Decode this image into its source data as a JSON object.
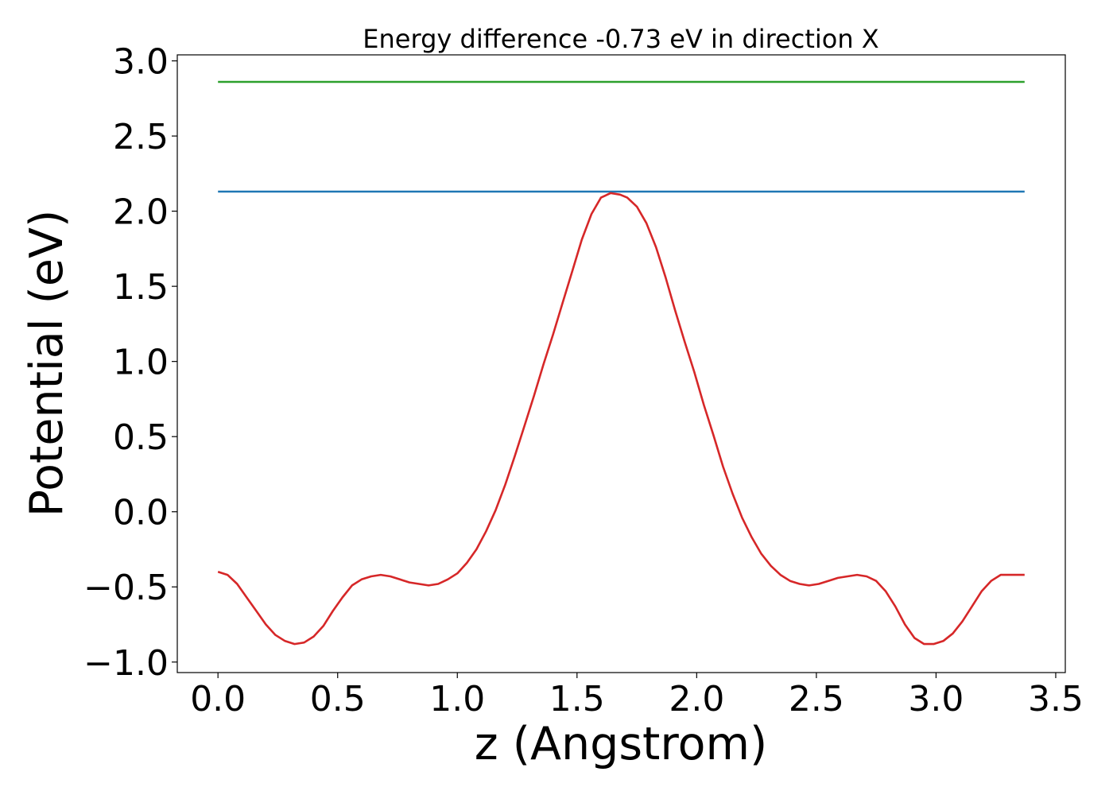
{
  "chart_data": {
    "type": "line",
    "title": "Energy difference -0.73 eV in direction X",
    "xlabel": "z (Angstrom)",
    "ylabel": "Potential (eV)",
    "xlim": [
      -0.17,
      3.54
    ],
    "ylim": [
      -1.07,
      3.04
    ],
    "xticks": [
      0.0,
      0.5,
      1.0,
      1.5,
      2.0,
      2.5,
      3.0,
      3.5
    ],
    "xtick_labels": [
      "0.0",
      "0.5",
      "1.0",
      "1.5",
      "2.0",
      "2.5",
      "3.0",
      "3.5"
    ],
    "yticks": [
      -1.0,
      -0.5,
      0.0,
      0.5,
      1.0,
      1.5,
      2.0,
      2.5,
      3.0
    ],
    "ytick_labels": [
      "−1.0",
      "−0.5",
      "0.0",
      "0.5",
      "1.0",
      "1.5",
      "2.0",
      "2.5",
      "3.0"
    ],
    "grid": false,
    "legend": "none",
    "series": [
      {
        "color": "#2ca02c",
        "x": [
          0.0,
          3.37
        ],
        "y": [
          2.86,
          2.86
        ]
      },
      {
        "color": "#1f77b4",
        "x": [
          0.0,
          3.37
        ],
        "y": [
          2.13,
          2.13
        ]
      },
      {
        "color": "#d62728",
        "x": [
          0.0,
          0.04,
          0.08,
          0.12,
          0.16,
          0.2,
          0.24,
          0.28,
          0.32,
          0.36,
          0.4,
          0.44,
          0.48,
          0.52,
          0.56,
          0.6,
          0.64,
          0.68,
          0.72,
          0.76,
          0.8,
          0.84,
          0.88,
          0.92,
          0.96,
          1.0,
          1.04,
          1.08,
          1.12,
          1.16,
          1.2,
          1.24,
          1.28,
          1.32,
          1.36,
          1.4,
          1.44,
          1.48,
          1.52,
          1.56,
          1.6,
          1.64,
          1.68,
          1.71,
          1.75,
          1.79,
          1.83,
          1.87,
          1.91,
          1.95,
          1.99,
          2.03,
          2.07,
          2.11,
          2.15,
          2.19,
          2.23,
          2.27,
          2.31,
          2.35,
          2.39,
          2.43,
          2.47,
          2.51,
          2.55,
          2.59,
          2.63,
          2.67,
          2.71,
          2.75,
          2.79,
          2.83,
          2.87,
          2.91,
          2.95,
          2.99,
          3.03,
          3.07,
          3.11,
          3.15,
          3.19,
          3.23,
          3.27,
          3.31,
          3.37
        ],
        "y": [
          -0.4,
          -0.42,
          -0.48,
          -0.57,
          -0.66,
          -0.75,
          -0.82,
          -0.86,
          -0.88,
          -0.87,
          -0.83,
          -0.76,
          -0.66,
          -0.57,
          -0.49,
          -0.45,
          -0.43,
          -0.42,
          -0.43,
          -0.45,
          -0.47,
          -0.48,
          -0.49,
          -0.48,
          -0.45,
          -0.41,
          -0.34,
          -0.25,
          -0.13,
          0.01,
          0.18,
          0.37,
          0.57,
          0.77,
          0.98,
          1.18,
          1.39,
          1.6,
          1.81,
          1.98,
          2.09,
          2.12,
          2.11,
          2.09,
          2.03,
          1.92,
          1.76,
          1.56,
          1.34,
          1.13,
          0.93,
          0.71,
          0.51,
          0.3,
          0.12,
          -0.04,
          -0.17,
          -0.28,
          -0.36,
          -0.42,
          -0.46,
          -0.48,
          -0.49,
          -0.48,
          -0.46,
          -0.44,
          -0.43,
          -0.42,
          -0.43,
          -0.46,
          -0.53,
          -0.63,
          -0.75,
          -0.84,
          -0.88,
          -0.88,
          -0.86,
          -0.81,
          -0.73,
          -0.63,
          -0.53,
          -0.46,
          -0.42,
          -0.42,
          -0.42
        ]
      }
    ]
  }
}
